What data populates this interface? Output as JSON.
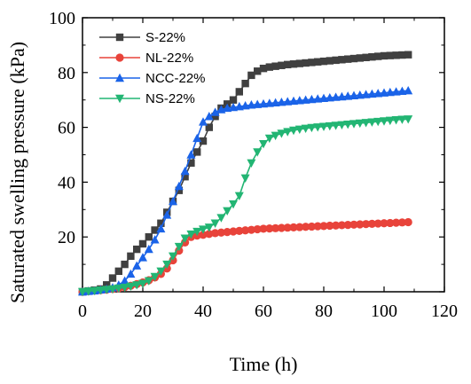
{
  "chart_data": {
    "type": "line",
    "xlabel": "Time (h)",
    "ylabel": "Saturated swelling pressure (kPa)",
    "xlim": [
      0,
      120
    ],
    "ylim": [
      0,
      100
    ],
    "xticks": [
      "0",
      "20",
      "40",
      "60",
      "80",
      "100",
      "120"
    ],
    "yticks": [
      "20",
      "40",
      "60",
      "80",
      "100"
    ],
    "grid": false,
    "legend": "top-left",
    "series": [
      {
        "name": "S-22%",
        "color": "#404040",
        "marker": "square",
        "x": [
          0,
          2,
          4,
          6,
          8,
          10,
          12,
          14,
          16,
          18,
          20,
          22,
          24,
          26,
          28,
          30,
          32,
          34,
          36,
          38,
          40,
          42,
          44,
          46,
          48,
          50,
          52,
          54,
          56,
          58,
          60,
          62,
          64,
          66,
          68,
          70,
          72,
          74,
          76,
          78,
          80,
          82,
          84,
          86,
          88,
          90,
          92,
          94,
          96,
          98,
          100,
          102,
          104,
          106,
          108
        ],
        "y": [
          0,
          0.3,
          0.6,
          1.0,
          2.5,
          5,
          7.5,
          10,
          13,
          15.5,
          17.5,
          20,
          22.5,
          25,
          29,
          33,
          37,
          42,
          47,
          51,
          55,
          60,
          64,
          67,
          68.5,
          70,
          73,
          76,
          79,
          80.5,
          81.5,
          82,
          82.3,
          82.6,
          82.9,
          83.1,
          83.3,
          83.5,
          83.7,
          83.9,
          84.1,
          84.3,
          84.5,
          84.7,
          84.9,
          85.1,
          85.3,
          85.5,
          85.7,
          85.9,
          86.1,
          86.2,
          86.3,
          86.4,
          86.5
        ]
      },
      {
        "name": "NL-22%",
        "color": "#e8433a",
        "marker": "circle",
        "x": [
          0,
          2,
          4,
          6,
          8,
          10,
          12,
          14,
          16,
          18,
          20,
          22,
          24,
          26,
          28,
          30,
          32,
          34,
          36,
          38,
          40,
          42,
          44,
          46,
          48,
          50,
          52,
          54,
          56,
          58,
          60,
          62,
          64,
          66,
          68,
          70,
          72,
          74,
          76,
          78,
          80,
          82,
          84,
          86,
          88,
          90,
          92,
          94,
          96,
          98,
          100,
          102,
          104,
          106,
          108
        ],
        "y": [
          0,
          0.2,
          0.4,
          0.6,
          0.8,
          1.0,
          1.3,
          1.7,
          2.2,
          2.8,
          3.4,
          4.2,
          5.2,
          6.5,
          8.5,
          11.5,
          15,
          18,
          20,
          20.5,
          20.8,
          21.1,
          21.4,
          21.6,
          21.8,
          22,
          22.2,
          22.4,
          22.6,
          22.8,
          23,
          23.1,
          23.2,
          23.3,
          23.4,
          23.5,
          23.6,
          23.7,
          23.8,
          23.9,
          24,
          24.1,
          24.2,
          24.3,
          24.4,
          24.5,
          24.6,
          24.7,
          24.8,
          24.9,
          25,
          25.1,
          25.2,
          25.3,
          25.4
        ]
      },
      {
        "name": "NCC-22%",
        "color": "#1a63e8",
        "marker": "triangle-up",
        "x": [
          0,
          2,
          4,
          6,
          8,
          10,
          12,
          14,
          16,
          18,
          20,
          22,
          24,
          26,
          28,
          30,
          32,
          34,
          36,
          38,
          40,
          42,
          44,
          46,
          48,
          50,
          52,
          54,
          56,
          58,
          60,
          62,
          64,
          66,
          68,
          70,
          72,
          74,
          76,
          78,
          80,
          82,
          84,
          86,
          88,
          90,
          92,
          94,
          96,
          98,
          100,
          102,
          104,
          106,
          108
        ],
        "y": [
          0,
          0.2,
          0.4,
          0.7,
          1.0,
          1.5,
          2.5,
          4,
          6.5,
          9.5,
          12.5,
          15.5,
          19,
          23,
          28,
          33,
          38.5,
          44,
          50,
          56,
          62,
          64,
          65.5,
          66.5,
          67,
          67.3,
          67.6,
          67.9,
          68.2,
          68.4,
          68.6,
          68.8,
          69,
          69.2,
          69.4,
          69.6,
          69.8,
          70,
          70.2,
          70.4,
          70.6,
          70.8,
          71,
          71.2,
          71.4,
          71.6,
          71.8,
          72,
          72.2,
          72.4,
          72.6,
          72.8,
          73,
          73.2,
          73.4
        ]
      },
      {
        "name": "NS-22%",
        "color": "#22b573",
        "marker": "triangle-down",
        "x": [
          0,
          2,
          4,
          6,
          8,
          10,
          12,
          14,
          16,
          18,
          20,
          22,
          24,
          26,
          28,
          30,
          32,
          34,
          36,
          38,
          40,
          42,
          44,
          46,
          48,
          50,
          52,
          54,
          56,
          58,
          60,
          62,
          64,
          66,
          68,
          70,
          72,
          74,
          76,
          78,
          80,
          82,
          84,
          86,
          88,
          90,
          92,
          94,
          96,
          98,
          100,
          102,
          104,
          106,
          108
        ],
        "y": [
          0,
          0.2,
          0.4,
          0.6,
          0.8,
          1.0,
          1.3,
          1.6,
          2.0,
          2.5,
          3.0,
          4.0,
          5.5,
          7.5,
          10,
          13,
          16.5,
          19.5,
          21,
          22,
          22.8,
          23.5,
          25,
          27,
          29.5,
          32,
          35,
          41.5,
          47,
          51,
          54,
          56,
          57,
          57.8,
          58.4,
          58.9,
          59.3,
          59.6,
          59.9,
          60.1,
          60.3,
          60.5,
          60.7,
          60.9,
          61.1,
          61.3,
          61.5,
          61.7,
          61.9,
          62.1,
          62.3,
          62.5,
          62.7,
          62.9,
          63
        ]
      }
    ]
  }
}
